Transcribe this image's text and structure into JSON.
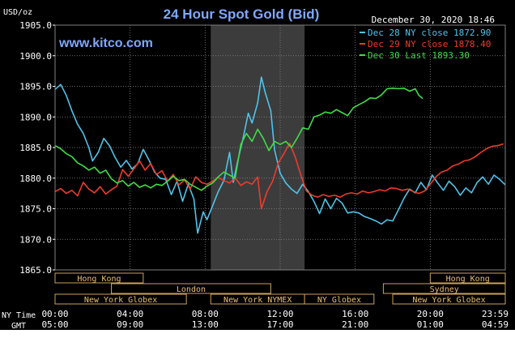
{
  "chart_data": {
    "type": "line",
    "title": "24 Hour Spot Gold (Bid)",
    "brand": "www.kitco.com",
    "unit_label": "USD/oz",
    "timestamp": "December 30, 2020 18:46",
    "ylim": [
      1865.0,
      1905.0
    ],
    "y_ticks": [
      "1905.0",
      "1900.0",
      "1895.0",
      "1890.0",
      "1885.0",
      "1880.0",
      "1875.0",
      "1870.0",
      "1865.0"
    ],
    "y_tick_values": [
      1905,
      1900,
      1895,
      1890,
      1885,
      1880,
      1875,
      1870,
      1865
    ],
    "xlim": [
      0,
      24
    ],
    "x_ticks_ny": [
      "00:00",
      "04:00",
      "08:00",
      "12:00",
      "16:00",
      "20:00",
      "23:59"
    ],
    "x_ticks_gmt": [
      "05:00",
      "09:00",
      "13:00",
      "17:00",
      "21:00",
      "01:00",
      "04:59"
    ],
    "x_tick_hours": [
      0,
      4,
      8,
      12,
      16,
      20,
      23.98
    ],
    "ny_time_label": "NY Time",
    "gmt_label": "GMT",
    "legend_placement": "top-right",
    "shaded_session": {
      "start_hour": 8.3,
      "end_hour": 13.3
    },
    "sessions": [
      {
        "label": "Hong Kong",
        "row": 0,
        "start": 0,
        "end": 4.7
      },
      {
        "label": "Hong Kong",
        "row": 0,
        "start": 20.0,
        "end": 24.0
      },
      {
        "label": "London",
        "row": 1,
        "start": 3.0,
        "end": 11.5
      },
      {
        "label": "Sydney",
        "row": 1,
        "start": 17.5,
        "end": 24.0
      },
      {
        "label": "New York Globex",
        "row": 2,
        "start": 0,
        "end": 7.0
      },
      {
        "label": "New York NYMEX",
        "row": 2,
        "start": 8.3,
        "end": 13.3
      },
      {
        "label": "NY Globex",
        "row": 2,
        "start": 13.3,
        "end": 17.0
      },
      {
        "label": "New York Globex",
        "row": 2,
        "start": 18.0,
        "end": 24.0
      }
    ],
    "series": [
      {
        "name": "Dec 28 NY close 1872.90",
        "color": "#4fc3ea",
        "points": [
          [
            0,
            1894.5
          ],
          [
            0.3,
            1895.3
          ],
          [
            0.6,
            1893.5
          ],
          [
            0.9,
            1891.0
          ],
          [
            1.2,
            1888.8
          ],
          [
            1.5,
            1887.3
          ],
          [
            1.8,
            1885.0
          ],
          [
            2.0,
            1882.8
          ],
          [
            2.3,
            1884.2
          ],
          [
            2.6,
            1886.5
          ],
          [
            2.9,
            1885.3
          ],
          [
            3.2,
            1883.4
          ],
          [
            3.5,
            1881.8
          ],
          [
            3.8,
            1882.9
          ],
          [
            4.1,
            1881.5
          ],
          [
            4.4,
            1882.3
          ],
          [
            4.7,
            1884.7
          ],
          [
            5.0,
            1883.0
          ],
          [
            5.3,
            1881.0
          ],
          [
            5.6,
            1880.0
          ],
          [
            5.9,
            1879.8
          ],
          [
            6.2,
            1877.3
          ],
          [
            6.5,
            1879.5
          ],
          [
            6.8,
            1876.2
          ],
          [
            7.1,
            1879.0
          ],
          [
            7.4,
            1876.6
          ],
          [
            7.6,
            1871.0
          ],
          [
            7.9,
            1874.5
          ],
          [
            8.1,
            1873.2
          ],
          [
            8.4,
            1875.5
          ],
          [
            8.7,
            1877.8
          ],
          [
            9.0,
            1879.6
          ],
          [
            9.3,
            1884.2
          ],
          [
            9.5,
            1879.3
          ],
          [
            9.7,
            1882.3
          ],
          [
            10.0,
            1886.2
          ],
          [
            10.3,
            1890.6
          ],
          [
            10.5,
            1889.0
          ],
          [
            10.8,
            1892.3
          ],
          [
            11.0,
            1896.5
          ],
          [
            11.2,
            1894.0
          ],
          [
            11.5,
            1891.0
          ],
          [
            11.7,
            1884.6
          ],
          [
            12.0,
            1880.8
          ],
          [
            12.3,
            1879.2
          ],
          [
            12.6,
            1878.2
          ],
          [
            12.9,
            1877.5
          ],
          [
            13.2,
            1879.0
          ],
          [
            13.5,
            1877.8
          ],
          [
            13.8,
            1876.2
          ],
          [
            14.1,
            1874.2
          ],
          [
            14.4,
            1876.6
          ],
          [
            14.7,
            1875.0
          ],
          [
            15.0,
            1876.7
          ],
          [
            15.3,
            1875.9
          ],
          [
            15.6,
            1874.3
          ],
          [
            15.9,
            1874.5
          ],
          [
            16.2,
            1874.3
          ],
          [
            16.5,
            1873.7
          ],
          [
            16.8,
            1873.4
          ],
          [
            17.1,
            1873.0
          ],
          [
            17.4,
            1872.5
          ],
          [
            17.7,
            1873.2
          ],
          [
            18.0,
            1873.0
          ],
          [
            18.3,
            1874.8
          ],
          [
            18.6,
            1876.7
          ],
          [
            18.9,
            1878.2
          ],
          [
            19.2,
            1877.6
          ],
          [
            19.5,
            1879.3
          ],
          [
            19.8,
            1878.1
          ],
          [
            20.1,
            1880.5
          ],
          [
            20.4,
            1879.2
          ],
          [
            20.7,
            1878.0
          ],
          [
            21.0,
            1879.5
          ],
          [
            21.3,
            1878.6
          ],
          [
            21.6,
            1877.2
          ],
          [
            21.9,
            1878.4
          ],
          [
            22.2,
            1877.6
          ],
          [
            22.5,
            1879.3
          ],
          [
            22.8,
            1880.2
          ],
          [
            23.1,
            1879.0
          ],
          [
            23.4,
            1880.5
          ],
          [
            23.7,
            1879.8
          ],
          [
            24.0,
            1878.9
          ]
        ]
      },
      {
        "name": "Dec 29 NY close 1878.40",
        "color": "#ef3b2c",
        "points": [
          [
            0,
            1877.8
          ],
          [
            0.3,
            1878.3
          ],
          [
            0.6,
            1877.5
          ],
          [
            0.9,
            1878.0
          ],
          [
            1.2,
            1877.1
          ],
          [
            1.5,
            1879.3
          ],
          [
            1.8,
            1878.2
          ],
          [
            2.1,
            1877.6
          ],
          [
            2.4,
            1878.6
          ],
          [
            2.7,
            1877.4
          ],
          [
            3.0,
            1878.1
          ],
          [
            3.3,
            1878.7
          ],
          [
            3.6,
            1881.4
          ],
          [
            3.9,
            1880.3
          ],
          [
            4.2,
            1881.5
          ],
          [
            4.5,
            1882.8
          ],
          [
            4.8,
            1881.3
          ],
          [
            5.1,
            1882.4
          ],
          [
            5.4,
            1880.6
          ],
          [
            5.7,
            1881.2
          ],
          [
            6.0,
            1879.5
          ],
          [
            6.3,
            1880.6
          ],
          [
            6.6,
            1878.9
          ],
          [
            6.9,
            1879.7
          ],
          [
            7.2,
            1878.2
          ],
          [
            7.5,
            1880.2
          ],
          [
            7.8,
            1879.3
          ],
          [
            8.1,
            1879.0
          ],
          [
            8.4,
            1879.5
          ],
          [
            8.7,
            1880.1
          ],
          [
            9.0,
            1879.6
          ],
          [
            9.3,
            1879.2
          ],
          [
            9.6,
            1880.0
          ],
          [
            9.9,
            1878.8
          ],
          [
            10.2,
            1879.4
          ],
          [
            10.5,
            1879.0
          ],
          [
            10.8,
            1880.2
          ],
          [
            11.0,
            1875.0
          ],
          [
            11.3,
            1877.8
          ],
          [
            11.6,
            1879.5
          ],
          [
            11.9,
            1882.5
          ],
          [
            12.2,
            1884.0
          ],
          [
            12.5,
            1885.7
          ],
          [
            12.8,
            1883.5
          ],
          [
            13.1,
            1880.5
          ],
          [
            13.4,
            1877.9
          ],
          [
            13.7,
            1877.2
          ],
          [
            14.0,
            1876.9
          ],
          [
            14.3,
            1877.3
          ],
          [
            14.6,
            1877.0
          ],
          [
            14.9,
            1877.2
          ],
          [
            15.2,
            1876.9
          ],
          [
            15.5,
            1877.4
          ],
          [
            15.8,
            1877.6
          ],
          [
            16.1,
            1877.4
          ],
          [
            16.4,
            1877.9
          ],
          [
            16.7,
            1877.6
          ],
          [
            17.0,
            1877.8
          ],
          [
            17.3,
            1878.1
          ],
          [
            17.6,
            1877.9
          ],
          [
            17.9,
            1878.4
          ],
          [
            18.2,
            1878.3
          ],
          [
            18.5,
            1878.0
          ],
          [
            18.8,
            1878.2
          ],
          [
            19.1,
            1877.8
          ],
          [
            19.4,
            1877.5
          ],
          [
            19.7,
            1877.9
          ],
          [
            20.0,
            1879.0
          ],
          [
            20.3,
            1880.2
          ],
          [
            20.6,
            1881.0
          ],
          [
            20.9,
            1881.3
          ],
          [
            21.2,
            1882.0
          ],
          [
            21.5,
            1882.3
          ],
          [
            21.8,
            1882.8
          ],
          [
            22.1,
            1883.0
          ],
          [
            22.4,
            1883.5
          ],
          [
            22.7,
            1884.2
          ],
          [
            23.0,
            1884.8
          ],
          [
            23.3,
            1885.2
          ],
          [
            23.6,
            1885.3
          ],
          [
            23.9,
            1885.6
          ]
        ]
      },
      {
        "name": "Dec 30 Last 1893.30",
        "color": "#3fdd46",
        "points": [
          [
            0,
            1885.3
          ],
          [
            0.3,
            1884.8
          ],
          [
            0.6,
            1884.0
          ],
          [
            0.9,
            1883.5
          ],
          [
            1.2,
            1882.5
          ],
          [
            1.5,
            1882.0
          ],
          [
            1.8,
            1881.3
          ],
          [
            2.1,
            1881.8
          ],
          [
            2.4,
            1880.8
          ],
          [
            2.7,
            1881.3
          ],
          [
            3.0,
            1879.9
          ],
          [
            3.3,
            1879.2
          ],
          [
            3.6,
            1879.6
          ],
          [
            3.9,
            1878.7
          ],
          [
            4.2,
            1879.3
          ],
          [
            4.5,
            1878.5
          ],
          [
            4.8,
            1878.9
          ],
          [
            5.1,
            1878.4
          ],
          [
            5.4,
            1879.0
          ],
          [
            5.7,
            1878.8
          ],
          [
            6.0,
            1879.5
          ],
          [
            6.3,
            1880.3
          ],
          [
            6.6,
            1879.6
          ],
          [
            6.9,
            1879.8
          ],
          [
            7.2,
            1879.0
          ],
          [
            7.5,
            1878.5
          ],
          [
            7.8,
            1878.0
          ],
          [
            8.1,
            1878.7
          ],
          [
            8.4,
            1879.2
          ],
          [
            8.7,
            1880.2
          ],
          [
            9.0,
            1881.0
          ],
          [
            9.3,
            1880.5
          ],
          [
            9.6,
            1880.0
          ],
          [
            9.9,
            1885.5
          ],
          [
            10.2,
            1887.3
          ],
          [
            10.5,
            1886.0
          ],
          [
            10.8,
            1888.0
          ],
          [
            11.1,
            1886.5
          ],
          [
            11.4,
            1884.5
          ],
          [
            11.7,
            1886.0
          ],
          [
            12.0,
            1885.5
          ],
          [
            12.3,
            1886.0
          ],
          [
            12.6,
            1885.0
          ],
          [
            12.9,
            1886.5
          ],
          [
            13.2,
            1888.2
          ],
          [
            13.5,
            1888.0
          ],
          [
            13.8,
            1890.0
          ],
          [
            14.1,
            1890.3
          ],
          [
            14.4,
            1890.8
          ],
          [
            14.7,
            1890.6
          ],
          [
            15.0,
            1891.2
          ],
          [
            15.3,
            1890.7
          ],
          [
            15.6,
            1890.2
          ],
          [
            15.9,
            1891.5
          ],
          [
            16.2,
            1892.0
          ],
          [
            16.5,
            1892.5
          ],
          [
            16.8,
            1893.1
          ],
          [
            17.1,
            1893.0
          ],
          [
            17.4,
            1893.6
          ],
          [
            17.7,
            1894.6
          ],
          [
            18.0,
            1894.7
          ],
          [
            18.3,
            1894.6
          ],
          [
            18.6,
            1894.7
          ],
          [
            18.9,
            1894.2
          ],
          [
            19.2,
            1894.6
          ],
          [
            19.4,
            1893.5
          ],
          [
            19.6,
            1893.0
          ]
        ]
      }
    ]
  }
}
